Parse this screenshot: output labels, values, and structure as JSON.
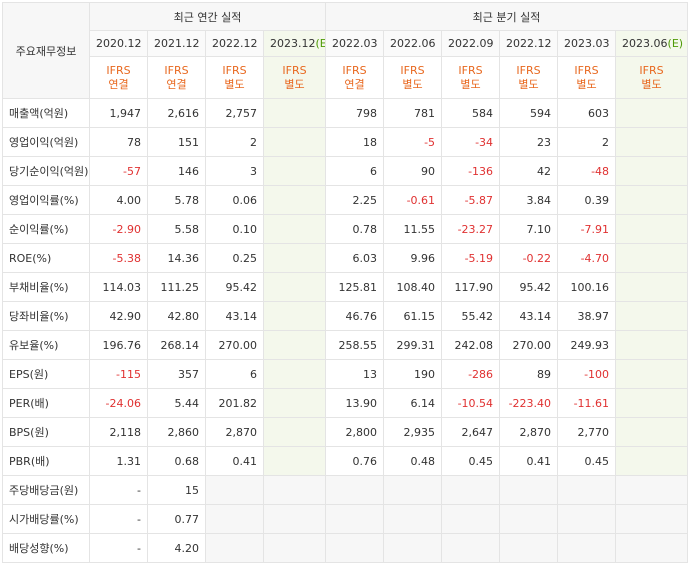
{
  "header": {
    "title": "주요재무정보",
    "annual_group": "최근 연간 실적",
    "quarter_group": "최근 분기 실적",
    "annual_periods": [
      "2020.12",
      "2021.12",
      "2022.12",
      "2023.12"
    ],
    "annual_est_suffix": "(E)",
    "quarter_periods": [
      "2022.03",
      "2022.06",
      "2022.09",
      "2022.12",
      "2023.03",
      "2023.06"
    ],
    "quarter_est_suffix": "(E)",
    "annual_ifrs": [
      "IFRS\n연결",
      "IFRS\n연결",
      "IFRS\n별도",
      "IFRS\n별도"
    ],
    "quarter_ifrs": [
      "IFRS\n연결",
      "IFRS\n별도",
      "IFRS\n별도",
      "IFRS\n별도",
      "IFRS\n별도",
      "IFRS\n별도"
    ]
  },
  "colors": {
    "negative": "#e03131",
    "ifrs": "#e8681f",
    "estimate": "#4e9a06"
  },
  "rows": [
    {
      "label": "매출액(억원)",
      "group_start": true,
      "annual": [
        "1,947",
        "2,616",
        "2,757",
        ""
      ],
      "quarter": [
        "798",
        "781",
        "584",
        "594",
        "603",
        ""
      ]
    },
    {
      "label": "영업이익(억원)",
      "annual": [
        "78",
        "151",
        "2",
        ""
      ],
      "quarter": [
        "18",
        "-5",
        "-34",
        "23",
        "2",
        ""
      ]
    },
    {
      "label": "당기순이익(억원)",
      "annual": [
        "-57",
        "146",
        "3",
        ""
      ],
      "quarter": [
        "6",
        "90",
        "-136",
        "42",
        "-48",
        ""
      ]
    },
    {
      "label": "영업이익률(%)",
      "group_start": true,
      "annual": [
        "4.00",
        "5.78",
        "0.06",
        ""
      ],
      "quarter": [
        "2.25",
        "-0.61",
        "-5.87",
        "3.84",
        "0.39",
        ""
      ]
    },
    {
      "label": "순이익률(%)",
      "annual": [
        "-2.90",
        "5.58",
        "0.10",
        ""
      ],
      "quarter": [
        "0.78",
        "11.55",
        "-23.27",
        "7.10",
        "-7.91",
        ""
      ]
    },
    {
      "label": "ROE(%)",
      "annual": [
        "-5.38",
        "14.36",
        "0.25",
        ""
      ],
      "quarter": [
        "6.03",
        "9.96",
        "-5.19",
        "-0.22",
        "-4.70",
        ""
      ]
    },
    {
      "label": "부채비율(%)",
      "group_start": true,
      "annual": [
        "114.03",
        "111.25",
        "95.42",
        ""
      ],
      "quarter": [
        "125.81",
        "108.40",
        "117.90",
        "95.42",
        "100.16",
        ""
      ]
    },
    {
      "label": "당좌비율(%)",
      "annual": [
        "42.90",
        "42.80",
        "43.14",
        ""
      ],
      "quarter": [
        "46.76",
        "61.15",
        "55.42",
        "43.14",
        "38.97",
        ""
      ]
    },
    {
      "label": "유보율(%)",
      "annual": [
        "196.76",
        "268.14",
        "270.00",
        ""
      ],
      "quarter": [
        "258.55",
        "299.31",
        "242.08",
        "270.00",
        "249.93",
        ""
      ]
    },
    {
      "label": "EPS(원)",
      "group_start": true,
      "annual": [
        "-115",
        "357",
        "6",
        ""
      ],
      "quarter": [
        "13",
        "190",
        "-286",
        "89",
        "-100",
        ""
      ]
    },
    {
      "label": "PER(배)",
      "annual": [
        "-24.06",
        "5.44",
        "201.82",
        ""
      ],
      "quarter": [
        "13.90",
        "6.14",
        "-10.54",
        "-223.40",
        "-11.61",
        ""
      ]
    },
    {
      "label": "BPS(원)",
      "annual": [
        "2,118",
        "2,860",
        "2,870",
        ""
      ],
      "quarter": [
        "2,800",
        "2,935",
        "2,647",
        "2,870",
        "2,770",
        ""
      ]
    },
    {
      "label": "PBR(배)",
      "annual": [
        "1.31",
        "0.68",
        "0.41",
        ""
      ],
      "quarter": [
        "0.76",
        "0.48",
        "0.45",
        "0.41",
        "0.45",
        ""
      ]
    },
    {
      "label": "주당배당금(원)",
      "group_start": true,
      "blank_rest": true,
      "annual": [
        "-",
        "15",
        "",
        ""
      ],
      "quarter": [
        "",
        "",
        "",
        "",
        "",
        ""
      ]
    },
    {
      "label": "시가배당률(%)",
      "blank_rest": true,
      "annual": [
        "-",
        "0.77",
        "",
        ""
      ],
      "quarter": [
        "",
        "",
        "",
        "",
        "",
        ""
      ]
    },
    {
      "label": "배당성향(%)",
      "blank_rest": true,
      "annual": [
        "-",
        "4.20",
        "",
        ""
      ],
      "quarter": [
        "",
        "",
        "",
        "",
        "",
        ""
      ]
    }
  ]
}
